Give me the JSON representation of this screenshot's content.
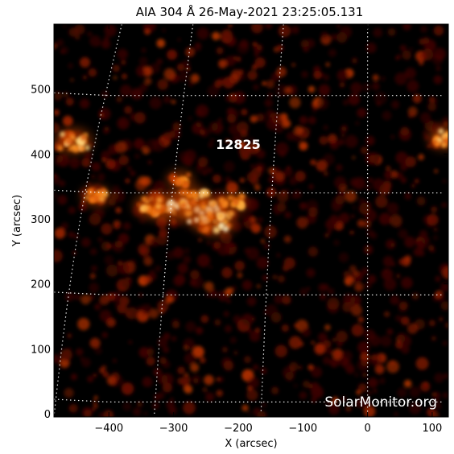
{
  "chart_data": {
    "type": "heatmap",
    "title": "AIA 304 Å 26-May-2021 23:25:05.131",
    "xlabel": "X (arcsec)",
    "ylabel": "Y (arcsec)",
    "xlim": [
      -485,
      125
    ],
    "ylim": [
      -5,
      600
    ],
    "xticks": [
      -400,
      -300,
      -200,
      -100,
      0,
      100
    ],
    "yticks": [
      0,
      100,
      200,
      300,
      400,
      500
    ],
    "grid": true,
    "colormap": "sdoaia304",
    "colors": {
      "background": "#000000",
      "low": "#5a0a00",
      "mid": "#c43c00",
      "high": "#ff9a2a",
      "peak": "#fff4c8"
    },
    "regions": [
      {
        "label": "12825",
        "x": -200,
        "y": 408
      }
    ],
    "bright_patches": [
      {
        "x": -255,
        "y": 310,
        "intensity": 1.0
      },
      {
        "x": -305,
        "y": 318,
        "intensity": 0.95
      },
      {
        "x": -235,
        "y": 295,
        "intensity": 0.9
      },
      {
        "x": -270,
        "y": 330,
        "intensity": 0.8
      },
      {
        "x": -335,
        "y": 320,
        "intensity": 0.7
      },
      {
        "x": -455,
        "y": 420,
        "intensity": 0.8
      },
      {
        "x": -420,
        "y": 335,
        "intensity": 0.55
      },
      {
        "x": 120,
        "y": 425,
        "intensity": 0.7
      },
      {
        "x": -210,
        "y": 325,
        "intensity": 0.6
      },
      {
        "x": -290,
        "y": 360,
        "intensity": 0.5
      }
    ],
    "credit": "SolarMonitor.org"
  }
}
